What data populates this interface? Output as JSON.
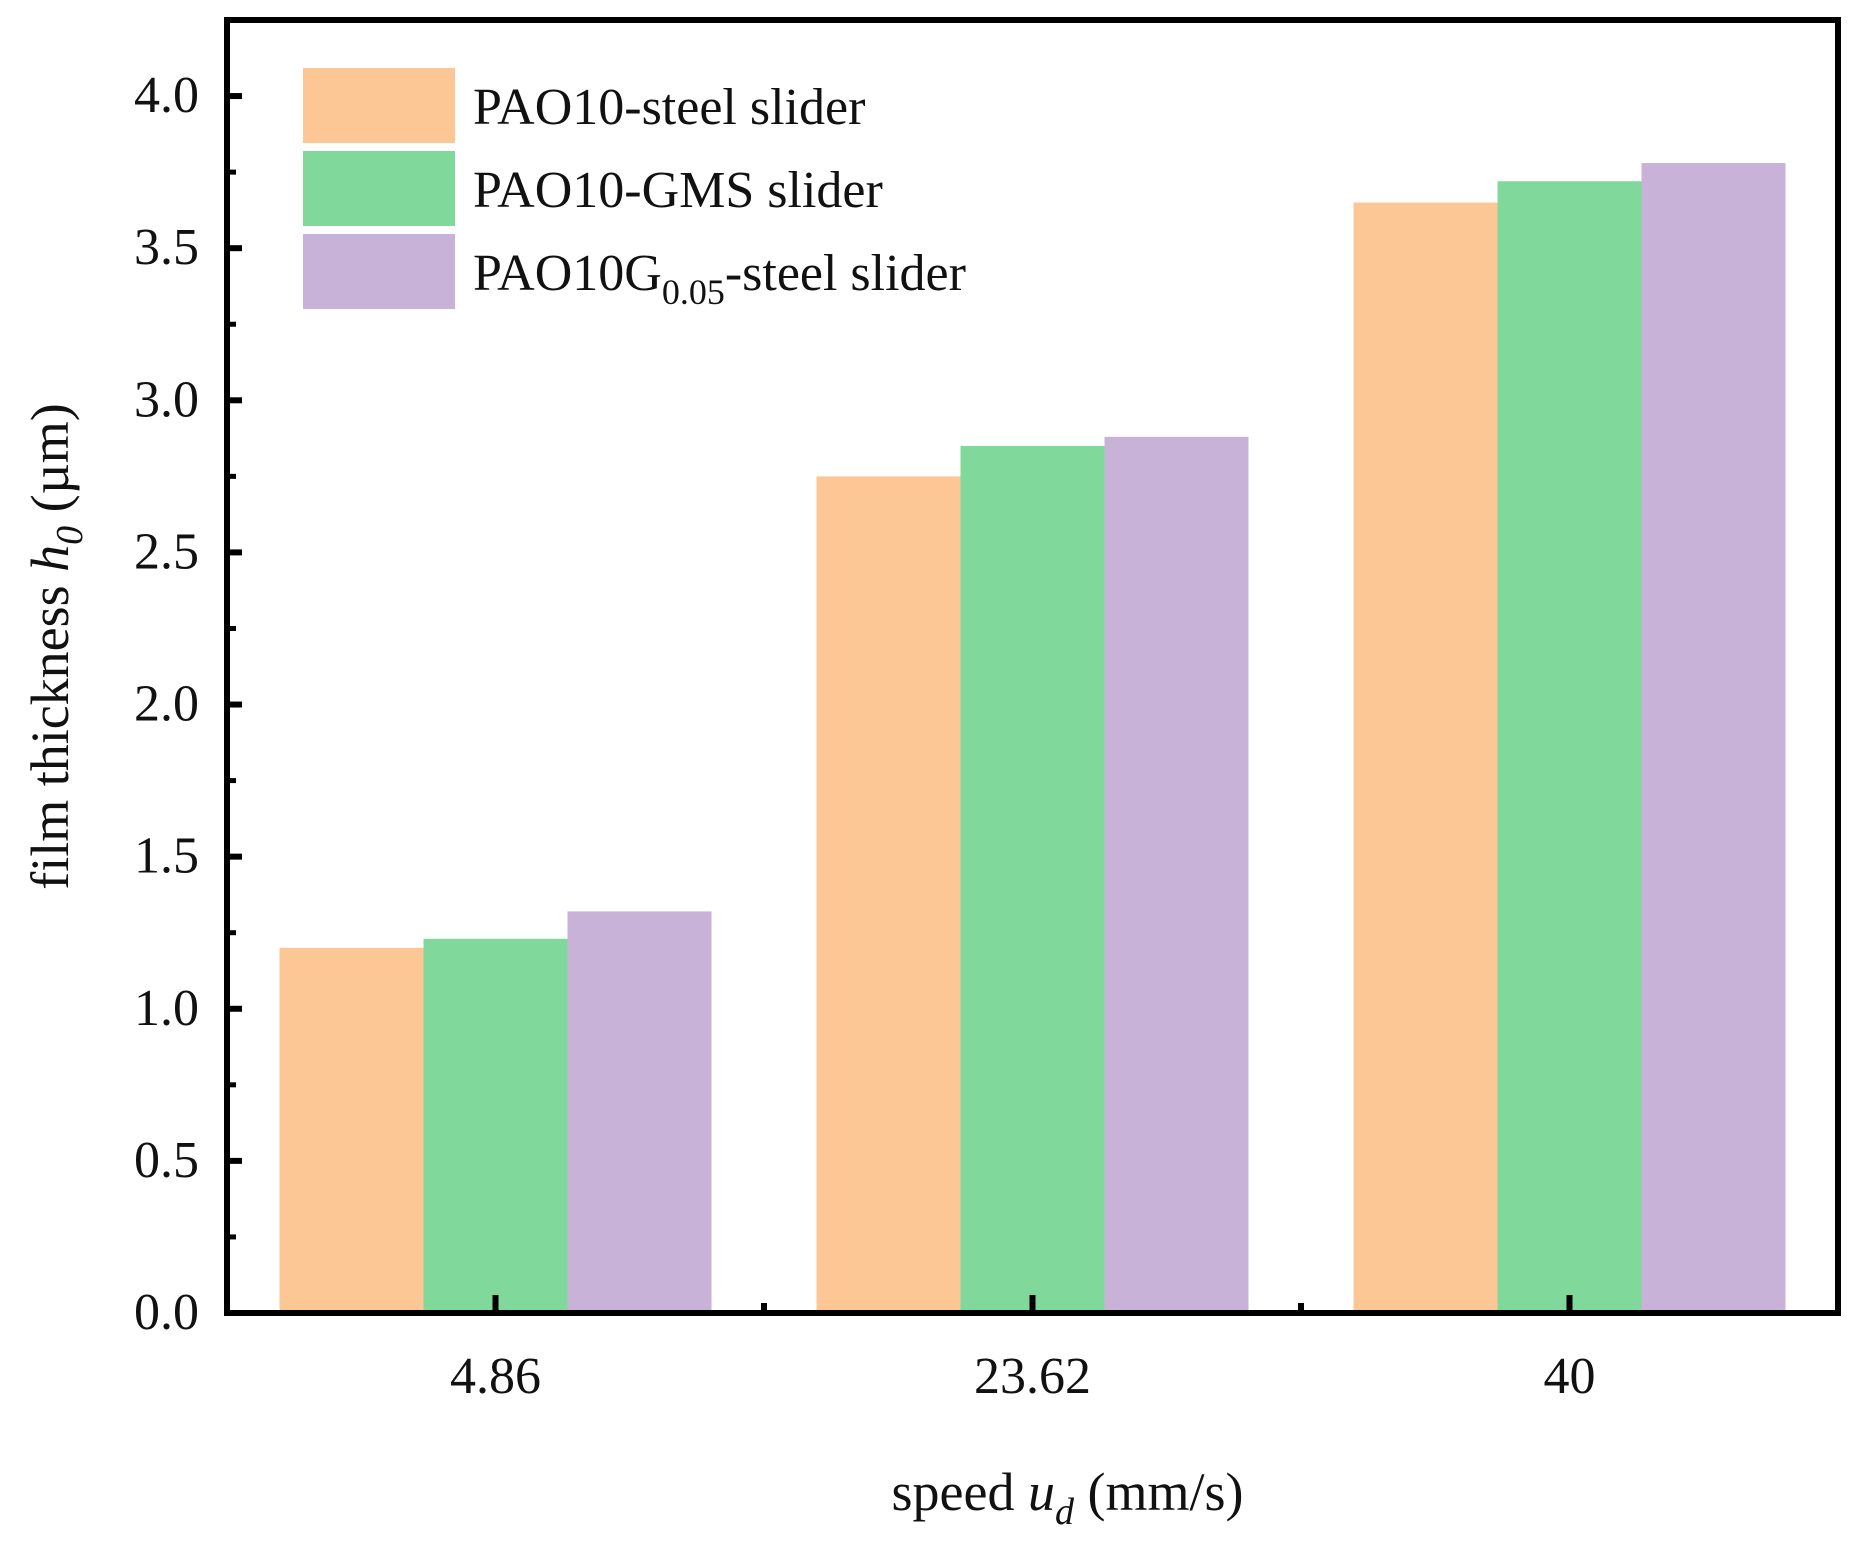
{
  "chart_data": {
    "type": "bar",
    "categories": [
      "4.86",
      "23.62",
      "40"
    ],
    "series": [
      {
        "name": "PAO10-steel slider",
        "legend_label": {
          "main": "PAO10-steel slider"
        },
        "color": "#fdc795",
        "values": [
          1.2,
          2.75,
          3.65
        ]
      },
      {
        "name": "PAO10-GMS slider",
        "legend_label": {
          "main": "PAO10-GMS slider"
        },
        "color": "#80d89b",
        "values": [
          1.23,
          2.85,
          3.72
        ]
      },
      {
        "name": "PAO10G0.05-steel slider",
        "legend_label": {
          "main": "PAO10G",
          "sub": "0.05",
          "rest": "-steel slider"
        },
        "color": "#c8b2d7",
        "values": [
          1.32,
          2.88,
          3.78
        ]
      }
    ],
    "ylim": [
      0,
      4.25
    ],
    "yticks": [
      "0.0",
      "0.5",
      "1.0",
      "1.5",
      "2.0",
      "2.5",
      "3.0",
      "3.5",
      "4.0"
    ],
    "xlabel": {
      "pre": "speed ",
      "var": "u",
      "sub": "d",
      "post": " (mm/s)"
    },
    "ylabel": {
      "pre": "film thickness ",
      "var": "h",
      "sub": "0",
      "post": " (µm)"
    },
    "legend_position": "top-left",
    "grid": false
  }
}
